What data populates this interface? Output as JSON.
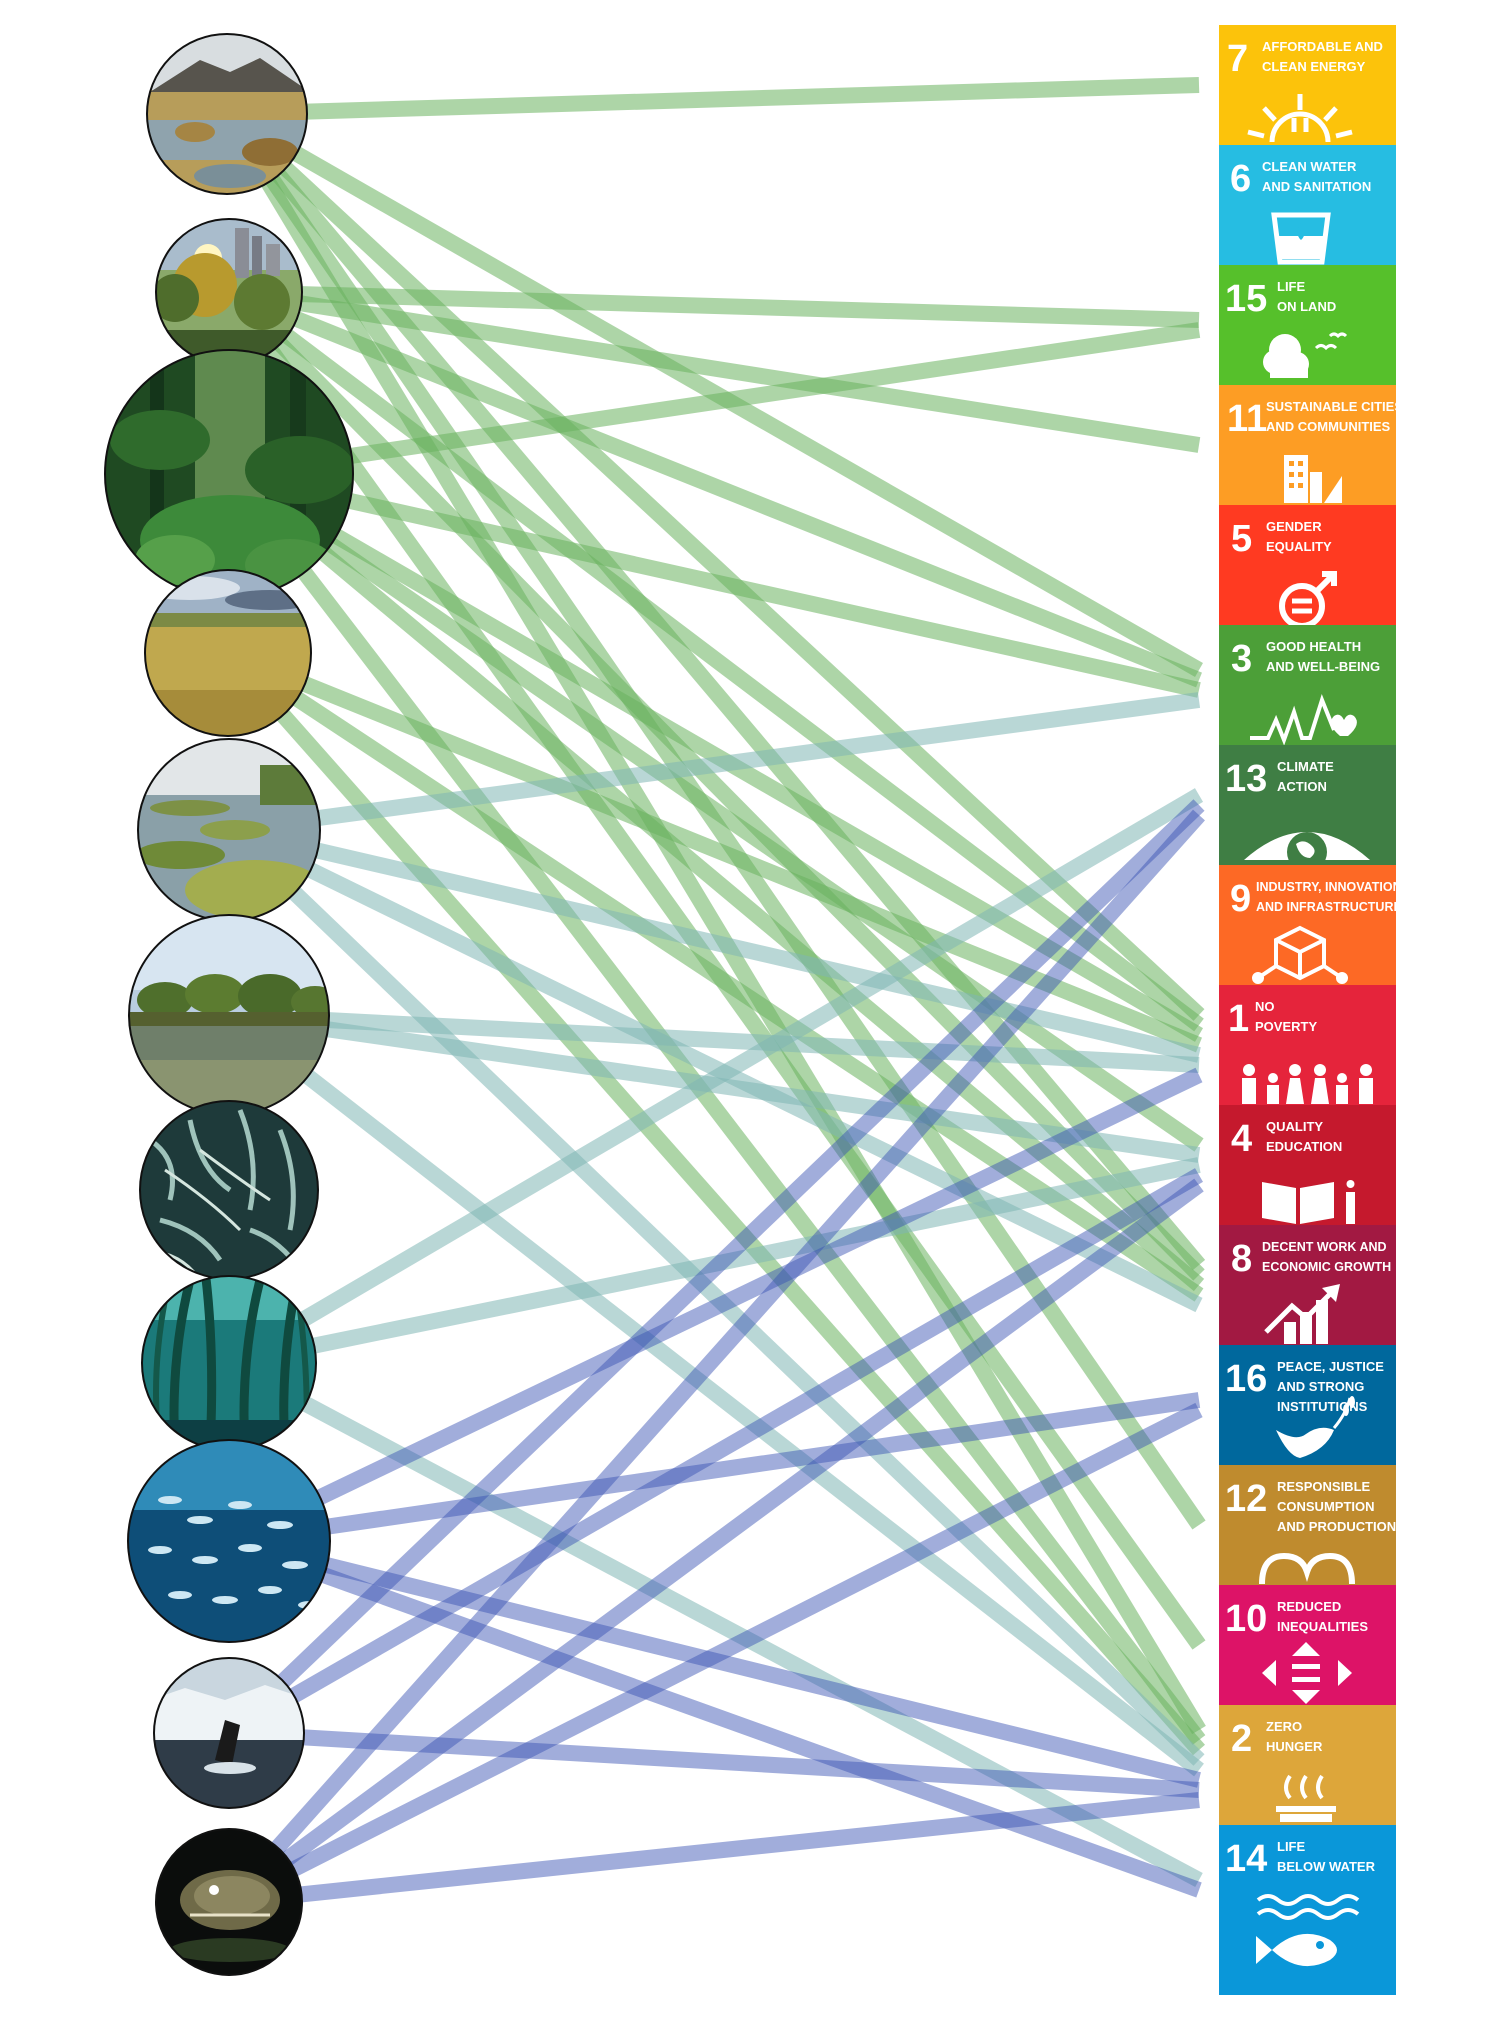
{
  "colors": {
    "terrestrial_link": "#69b25e",
    "coastal_link": "#7fb7b4",
    "marine_link": "#3a53b3",
    "background": "#ffffff"
  },
  "ecosystems": [
    {
      "id": "peatland",
      "name": "peatland",
      "kind": "terrestrial"
    },
    {
      "id": "urban-forest",
      "name": "urban forest",
      "kind": "terrestrial"
    },
    {
      "id": "tropical-forest",
      "name": "tropical forest",
      "kind": "terrestrial"
    },
    {
      "id": "grassland",
      "name": "grassland",
      "kind": "terrestrial"
    },
    {
      "id": "salt-marsh",
      "name": "salt marsh",
      "kind": "coastal"
    },
    {
      "id": "mangrove",
      "name": "mangrove",
      "kind": "coastal"
    },
    {
      "id": "seagrass",
      "name": "seagrass meadow",
      "kind": "coastal"
    },
    {
      "id": "kelp-forest",
      "name": "kelp forest",
      "kind": "coastal"
    },
    {
      "id": "fish-shoal",
      "name": "open ocean fish",
      "kind": "marine"
    },
    {
      "id": "polar-whale",
      "name": "polar sea and whale",
      "kind": "marine"
    },
    {
      "id": "deep-sea",
      "name": "deep sea",
      "kind": "marine"
    }
  ],
  "sdgs": [
    {
      "num": "7",
      "lines": [
        "AFFORDABLE AND",
        "CLEAN ENERGY"
      ],
      "color": "#fcc30b",
      "icon": "sun-plug-icon"
    },
    {
      "num": "6",
      "lines": [
        "CLEAN WATER",
        "AND SANITATION"
      ],
      "color": "#26bde2",
      "icon": "water-glass-icon"
    },
    {
      "num": "15",
      "lines": [
        "LIFE",
        "ON LAND"
      ],
      "color": "#56c02b",
      "icon": "tree-birds-icon"
    },
    {
      "num": "11",
      "lines": [
        "SUSTAINABLE CITIES",
        "AND COMMUNITIES"
      ],
      "color": "#fd9d24",
      "icon": "city-buildings-icon"
    },
    {
      "num": "5",
      "lines": [
        "GENDER",
        "EQUALITY"
      ],
      "color": "#ff3a21",
      "icon": "gender-symbol-icon"
    },
    {
      "num": "3",
      "lines": [
        "GOOD HEALTH",
        "AND WELL-BEING"
      ],
      "color": "#4c9f38",
      "icon": "heartbeat-icon"
    },
    {
      "num": "13",
      "lines": [
        "CLIMATE",
        "ACTION"
      ],
      "color": "#3f7e44",
      "icon": "globe-eye-icon"
    },
    {
      "num": "9",
      "lines": [
        "INDUSTRY, INNOVATION",
        "AND INFRASTRUCTURE"
      ],
      "color": "#fd6925",
      "icon": "cube-network-icon"
    },
    {
      "num": "1",
      "lines": [
        "NO",
        "POVERTY"
      ],
      "color": "#e5243b",
      "icon": "family-icon"
    },
    {
      "num": "4",
      "lines": [
        "QUALITY",
        "EDUCATION"
      ],
      "color": "#c5192d",
      "icon": "book-pencil-icon"
    },
    {
      "num": "8",
      "lines": [
        "DECENT WORK AND",
        "ECONOMIC GROWTH"
      ],
      "color": "#a21942",
      "icon": "growth-chart-icon"
    },
    {
      "num": "16",
      "lines": [
        "PEACE, JUSTICE",
        "AND STRONG",
        "INSTITUTIONS"
      ],
      "color": "#00689d",
      "icon": "dove-icon"
    },
    {
      "num": "12",
      "lines": [
        "RESPONSIBLE",
        "CONSUMPTION",
        "AND PRODUCTION"
      ],
      "color": "#bf8b2e",
      "icon": "infinity-loop-icon"
    },
    {
      "num": "10",
      "lines": [
        "REDUCED",
        "INEQUALITIES"
      ],
      "color": "#dd1367",
      "icon": "equality-arrows-icon"
    },
    {
      "num": "2",
      "lines": [
        "ZERO",
        "HUNGER"
      ],
      "color": "#dda63a",
      "icon": "steaming-bowl-icon"
    },
    {
      "num": "14",
      "lines": [
        "LIFE",
        "BELOW WATER"
      ],
      "color": "#0a97d9",
      "icon": "fish-waves-icon"
    }
  ],
  "links": [
    {
      "from": 0,
      "to": 0,
      "kind": "terrestrial"
    },
    {
      "from": 0,
      "to": 5,
      "kind": "terrestrial"
    },
    {
      "from": 0,
      "to": 8,
      "kind": "terrestrial"
    },
    {
      "from": 0,
      "to": 10,
      "kind": "terrestrial"
    },
    {
      "from": 0,
      "to": 12,
      "kind": "terrestrial"
    },
    {
      "from": 0,
      "to": 14,
      "kind": "terrestrial"
    },
    {
      "from": 1,
      "to": 2,
      "kind": "terrestrial"
    },
    {
      "from": 1,
      "to": 3,
      "kind": "terrestrial"
    },
    {
      "from": 1,
      "to": 5,
      "kind": "terrestrial"
    },
    {
      "from": 1,
      "to": 8,
      "kind": "terrestrial"
    },
    {
      "from": 1,
      "to": 10,
      "kind": "terrestrial"
    },
    {
      "from": 1,
      "to": 13,
      "kind": "terrestrial"
    },
    {
      "from": 2,
      "to": 2,
      "kind": "terrestrial"
    },
    {
      "from": 2,
      "to": 5,
      "kind": "terrestrial"
    },
    {
      "from": 2,
      "to": 8,
      "kind": "terrestrial"
    },
    {
      "from": 2,
      "to": 9,
      "kind": "terrestrial"
    },
    {
      "from": 2,
      "to": 10,
      "kind": "terrestrial"
    },
    {
      "from": 2,
      "to": 14,
      "kind": "terrestrial"
    },
    {
      "from": 3,
      "to": 8,
      "kind": "terrestrial"
    },
    {
      "from": 3,
      "to": 10,
      "kind": "terrestrial"
    },
    {
      "from": 3,
      "to": 14,
      "kind": "terrestrial"
    },
    {
      "from": 4,
      "to": 5,
      "kind": "coastal"
    },
    {
      "from": 4,
      "to": 8,
      "kind": "coastal"
    },
    {
      "from": 4,
      "to": 10,
      "kind": "coastal"
    },
    {
      "from": 4,
      "to": 14,
      "kind": "coastal"
    },
    {
      "from": 5,
      "to": 8,
      "kind": "coastal"
    },
    {
      "from": 5,
      "to": 9,
      "kind": "coastal"
    },
    {
      "from": 5,
      "to": 14,
      "kind": "coastal"
    },
    {
      "from": 7,
      "to": 6,
      "kind": "coastal"
    },
    {
      "from": 7,
      "to": 9,
      "kind": "coastal"
    },
    {
      "from": 7,
      "to": 15,
      "kind": "coastal"
    },
    {
      "from": 8,
      "to": 8,
      "kind": "marine"
    },
    {
      "from": 8,
      "to": 11,
      "kind": "marine"
    },
    {
      "from": 8,
      "to": 14,
      "kind": "marine"
    },
    {
      "from": 8,
      "to": 15,
      "kind": "marine"
    },
    {
      "from": 9,
      "to": 6,
      "kind": "marine"
    },
    {
      "from": 9,
      "to": 9,
      "kind": "marine"
    },
    {
      "from": 9,
      "to": 14,
      "kind": "marine"
    },
    {
      "from": 10,
      "to": 6,
      "kind": "marine"
    },
    {
      "from": 10,
      "to": 9,
      "kind": "marine"
    },
    {
      "from": 10,
      "to": 11,
      "kind": "marine"
    },
    {
      "from": 10,
      "to": 14,
      "kind": "marine"
    }
  ]
}
